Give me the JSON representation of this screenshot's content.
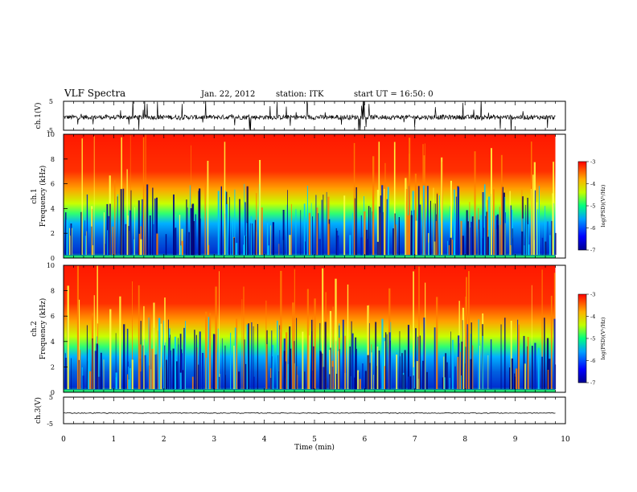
{
  "header": {
    "title": "VLF Spectra",
    "date": "Jan. 22, 2012",
    "station": "station: ITK",
    "start": "start UT = 16:50: 0"
  },
  "chart_data": [
    {
      "type": "line",
      "panel": "ch1-waveform",
      "ylabel": "ch.1(V)",
      "ylim": [
        -5,
        5
      ],
      "yticks": [
        5,
        -5
      ],
      "xlim": [
        0,
        10
      ],
      "note": "noisy waveform with frequent impulsive spikes"
    },
    {
      "type": "heatmap",
      "panel": "ch1-spectrogram",
      "ylabel_line1": "ch.1",
      "ylabel_line2": "Frequency (kHz)",
      "ylim": [
        0,
        10
      ],
      "yticks": [
        0,
        2,
        4,
        6,
        8,
        10
      ],
      "xlim": [
        0,
        9.8
      ],
      "colorbar": {
        "label": "log(PSD)(V²/Hz)",
        "range": [
          -7,
          -3
        ],
        "ticks": [
          -3,
          -4,
          -5,
          -6,
          -7
        ]
      }
    },
    {
      "type": "heatmap",
      "panel": "ch2-spectrogram",
      "ylabel_line1": "ch.2",
      "ylabel_line2": "Frequency (kHz)",
      "ylim": [
        0,
        10
      ],
      "yticks": [
        0,
        2,
        4,
        6,
        8,
        10
      ],
      "xlim": [
        0,
        9.8
      ],
      "colorbar": {
        "label": "log(PSD)(V²/Hz)",
        "range": [
          -7,
          -3
        ],
        "ticks": [
          -3,
          -4,
          -5,
          -6,
          -7
        ]
      }
    },
    {
      "type": "line",
      "panel": "ch3-waveform",
      "ylabel": "ch.3(V)",
      "ylim": [
        -5,
        5
      ],
      "yticks": [
        5,
        -5
      ],
      "xlabel": "Time (min)",
      "xlim": [
        0,
        10
      ],
      "xticks": [
        0,
        1,
        2,
        3,
        4,
        5,
        6,
        7,
        8,
        9,
        10
      ],
      "note": "flat trace near -1 V"
    }
  ]
}
